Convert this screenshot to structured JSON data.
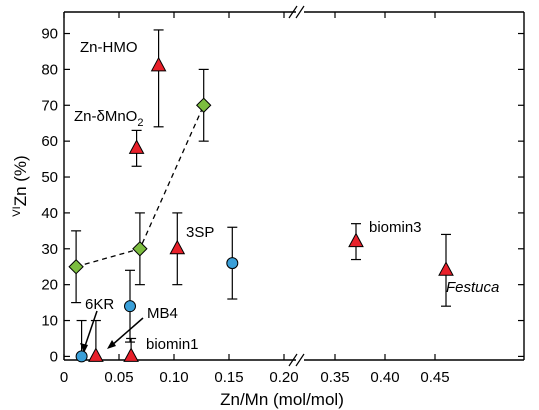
{
  "chart_data": {
    "type": "scatter",
    "xlabel": "Zn/Mn (mol/mol)",
    "ylabel_sup": "VI",
    "ylabel_main": "Zn (%)",
    "ylim": [
      -1,
      96
    ],
    "x_segments": [
      {
        "range": [
          0,
          0.21
        ],
        "ticks": [
          0,
          0.05,
          0.1,
          0.15,
          0.2
        ],
        "tick_labels": [
          "0",
          "0.05",
          "0.10",
          "0.15",
          "0.20"
        ]
      },
      {
        "range": [
          0.31,
          0.47
        ],
        "ticks": [
          0.35,
          0.4,
          0.45
        ],
        "tick_labels": [
          "0.35",
          "0.40",
          "0.45"
        ]
      }
    ],
    "y_ticks": [
      0,
      10,
      20,
      30,
      40,
      50,
      60,
      70,
      80,
      90
    ],
    "grid": false,
    "series": [
      {
        "marker": "triangle",
        "color": "#e8202a",
        "points": [
          {
            "x": 0.086,
            "y": 81,
            "err_lo": 17,
            "err_hi": 10
          },
          {
            "x": 0.066,
            "y": 58,
            "err_lo": 5,
            "err_hi": 5
          },
          {
            "x": 0.103,
            "y": 30,
            "err_lo": 10,
            "err_hi": 10
          },
          {
            "x": 0.371,
            "y": 32,
            "err_lo": 5,
            "err_hi": 5
          },
          {
            "x": 0.461,
            "y": 24,
            "err_lo": 10,
            "err_hi": 10
          },
          {
            "x": 0.061,
            "y": 0,
            "err_lo": 0,
            "err_hi": 5
          },
          {
            "x": 0.029,
            "y": 0,
            "err_lo": 0,
            "err_hi": 10
          }
        ]
      },
      {
        "marker": "diamond",
        "color": "#7cbd3f",
        "connector": "dashed",
        "points": [
          {
            "x": 0.011,
            "y": 25,
            "err_lo": 10,
            "err_hi": 10
          },
          {
            "x": 0.069,
            "y": 30,
            "err_lo": 10,
            "err_hi": 10
          },
          {
            "x": 0.127,
            "y": 70,
            "err_lo": 10,
            "err_hi": 10
          }
        ]
      },
      {
        "marker": "circle",
        "color": "#3a9fd8",
        "points": [
          {
            "x": 0.016,
            "y": 0,
            "err_lo": 0,
            "err_hi": 10
          },
          {
            "x": 0.06,
            "y": 14,
            "err_lo": 10,
            "err_hi": 10
          },
          {
            "x": 0.153,
            "y": 26,
            "err_lo": 10,
            "err_hi": 10
          }
        ]
      }
    ],
    "annotations": [
      {
        "text": "Zn-HMO",
        "style": "normal"
      },
      {
        "text": "Zn-δMnO",
        "sub": "2",
        "style": "normal"
      },
      {
        "text": "3SP",
        "style": "normal"
      },
      {
        "text": "biomin3",
        "style": "normal"
      },
      {
        "text": "Festuca",
        "style": "italic"
      },
      {
        "text": "6KR",
        "style": "normal"
      },
      {
        "text": "MB4",
        "style": "normal"
      },
      {
        "text": "biomin1",
        "style": "normal"
      }
    ]
  }
}
